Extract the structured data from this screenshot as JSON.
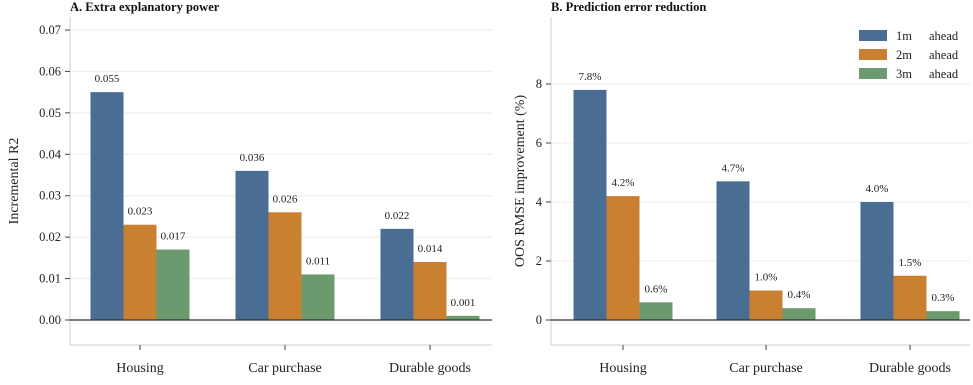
{
  "colors": {
    "series": [
      "#4a6d94",
      "#c98031",
      "#6a9a6e"
    ],
    "frame": "#cfcfcf",
    "grid": "#ebebeb",
    "axis": "#444444",
    "baseline": "#333333"
  },
  "chart_data": [
    {
      "type": "bar",
      "title": "A. Extra explanatory power",
      "xlabel": "",
      "ylabel": "Incremental R2",
      "ylim": [
        0,
        0.07
      ],
      "yticks": [
        0,
        0.01,
        0.02,
        0.03,
        0.04,
        0.05,
        0.06,
        0.07
      ],
      "ytick_labels": [
        "0.00",
        "0.01",
        "0.02",
        "0.03",
        "0.04",
        "0.05",
        "0.06",
        "0.07"
      ],
      "categories": [
        "Housing",
        "Car purchase",
        "Durable goods"
      ],
      "grid": true,
      "series": [
        {
          "values": [
            0.055,
            0.036,
            0.022
          ],
          "labels": [
            "0.055",
            "0.036",
            "0.022"
          ]
        },
        {
          "values": [
            0.023,
            0.026,
            0.014
          ],
          "labels": [
            "0.023",
            "0.026",
            "0.014"
          ]
        },
        {
          "values": [
            0.017,
            0.011,
            0.001
          ],
          "labels": [
            "0.017",
            "0.011",
            "0.001"
          ]
        }
      ]
    },
    {
      "type": "bar",
      "title": "B. Prediction error reduction",
      "xlabel": "",
      "ylabel": "OOS RMSE improvement (%)",
      "ylim": [
        -0.6,
        9.3
      ],
      "yticks": [
        0,
        2,
        4,
        6,
        8
      ],
      "ytick_labels": [
        "0",
        "2",
        "4",
        "6",
        "8"
      ],
      "categories": [
        "Housing",
        "Car purchase",
        "Durable goods"
      ],
      "grid": true,
      "legend_position": "top-right",
      "series": [
        {
          "name": "1m ahead",
          "values": [
            7.8,
            4.7,
            4.0
          ],
          "labels": [
            "7.8%",
            "4.7%",
            "4.0%"
          ]
        },
        {
          "name": "2m ahead",
          "values": [
            4.2,
            1.0,
            1.5
          ],
          "labels": [
            "4.2%",
            "1.0%",
            "1.5%"
          ]
        },
        {
          "name": "3m ahead",
          "values": [
            0.6,
            0.4,
            0.3
          ],
          "labels": [
            "0.6%",
            "0.4%",
            "0.3%"
          ]
        }
      ]
    }
  ]
}
